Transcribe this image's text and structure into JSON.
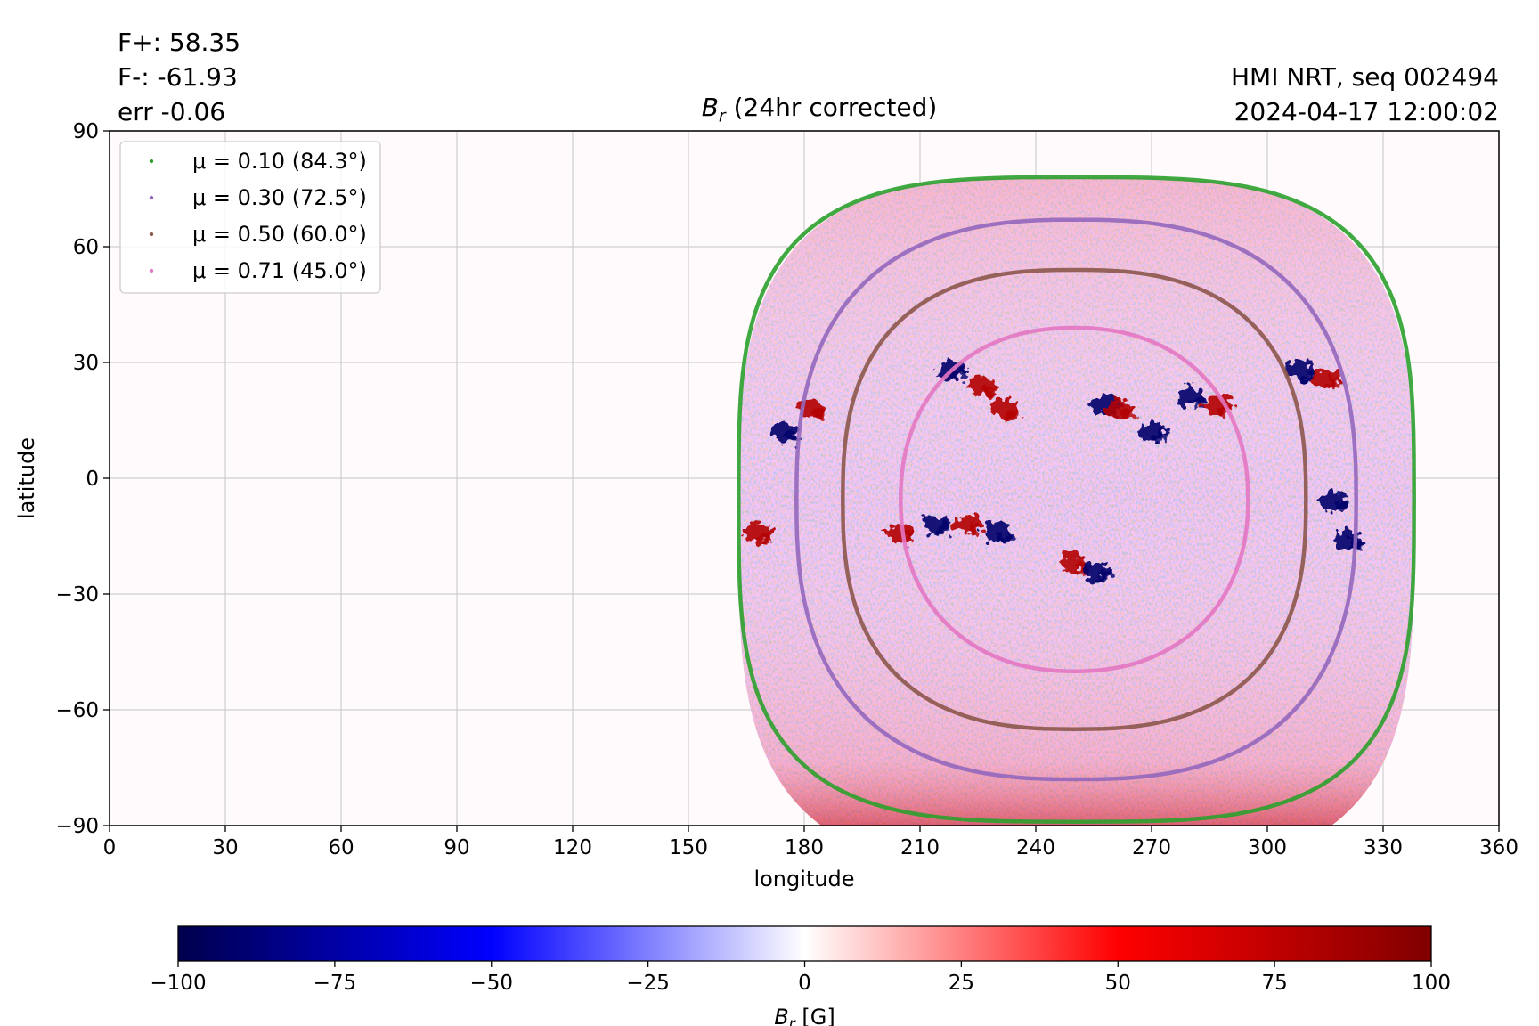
{
  "header": {
    "stats": [
      "F+: 58.35",
      "F-: -61.93",
      "err -0.06"
    ],
    "source": "HMI NRT, seq 002494",
    "timestamp": "2024-04-17 12:00:02"
  },
  "chart_data": {
    "type": "heatmap",
    "title": {
      "symbol": "B",
      "subscript": "r",
      "text": " (24hr corrected)"
    },
    "xlabel": "longitude",
    "ylabel": "latitude",
    "xlim": [
      0,
      360
    ],
    "ylim": [
      -90,
      90
    ],
    "x_ticks": [
      0,
      30,
      60,
      90,
      120,
      150,
      180,
      210,
      240,
      270,
      300,
      330,
      360
    ],
    "y_ticks": [
      90,
      60,
      30,
      0,
      -30,
      -60,
      -90
    ],
    "y_tick_labels": [
      "90",
      "60",
      "30",
      "0",
      "−30",
      "−60",
      "−90"
    ],
    "grid": true,
    "field_extent": {
      "lon_min": 163,
      "lon_max": 338,
      "lat_min": -90,
      "lat_max": 78
    },
    "field_center": {
      "lon": 250,
      "lat": -5
    },
    "series": [
      {
        "name": "μ = 0.10 (84.3°)",
        "color": "#2ca02c",
        "lon_range": [
          163,
          338
        ],
        "lat_range": [
          -89,
          78
        ]
      },
      {
        "name": "μ = 0.30 (72.5°)",
        "color": "#9467bd",
        "lon_range": [
          178,
          323
        ],
        "lat_range": [
          -78,
          67
        ]
      },
      {
        "name": "μ = 0.50 (60.0°)",
        "color": "#8c564b",
        "lon_range": [
          190,
          310
        ],
        "lat_range": [
          -65,
          54
        ]
      },
      {
        "name": "μ = 0.71 (45.0°)",
        "color": "#e377c2",
        "lon_range": [
          205,
          295
        ],
        "lat_range": [
          -50,
          39
        ]
      }
    ],
    "legend_position": "upper-left",
    "active_regions": [
      {
        "lon": 175,
        "lat": 12,
        "polarity": "negative"
      },
      {
        "lon": 182,
        "lat": 18,
        "polarity": "positive"
      },
      {
        "lon": 218,
        "lat": 28,
        "polarity": "negative"
      },
      {
        "lon": 226,
        "lat": 24,
        "polarity": "positive"
      },
      {
        "lon": 232,
        "lat": 18,
        "polarity": "positive"
      },
      {
        "lon": 258,
        "lat": 19,
        "polarity": "negative"
      },
      {
        "lon": 262,
        "lat": 18,
        "polarity": "positive"
      },
      {
        "lon": 270,
        "lat": 12,
        "polarity": "negative"
      },
      {
        "lon": 280,
        "lat": 21,
        "polarity": "negative"
      },
      {
        "lon": 287,
        "lat": 19,
        "polarity": "positive"
      },
      {
        "lon": 309,
        "lat": 28,
        "polarity": "negative"
      },
      {
        "lon": 315,
        "lat": 26,
        "polarity": "positive"
      },
      {
        "lon": 205,
        "lat": -14,
        "polarity": "positive"
      },
      {
        "lon": 214,
        "lat": -12,
        "polarity": "negative"
      },
      {
        "lon": 222,
        "lat": -12,
        "polarity": "positive"
      },
      {
        "lon": 230,
        "lat": -14,
        "polarity": "negative"
      },
      {
        "lon": 250,
        "lat": -22,
        "polarity": "positive"
      },
      {
        "lon": 256,
        "lat": -24,
        "polarity": "negative"
      },
      {
        "lon": 317,
        "lat": -6,
        "polarity": "negative"
      },
      {
        "lon": 321,
        "lat": -16,
        "polarity": "negative"
      },
      {
        "lon": 168,
        "lat": -14,
        "polarity": "positive"
      }
    ],
    "colorbar": {
      "label": {
        "symbol": "B",
        "subscript": "r",
        "unit": " [G]"
      },
      "range": [
        -100,
        100
      ],
      "ticks": [
        -100,
        -75,
        -50,
        -25,
        0,
        25,
        50,
        75,
        100
      ],
      "tick_labels": [
        "−100",
        "−75",
        "−50",
        "−25",
        "0",
        "25",
        "50",
        "75",
        "100"
      ],
      "colormap": [
        "#00004c",
        "#0000ff",
        "#ffffff",
        "#ff0000",
        "#800000"
      ]
    }
  }
}
